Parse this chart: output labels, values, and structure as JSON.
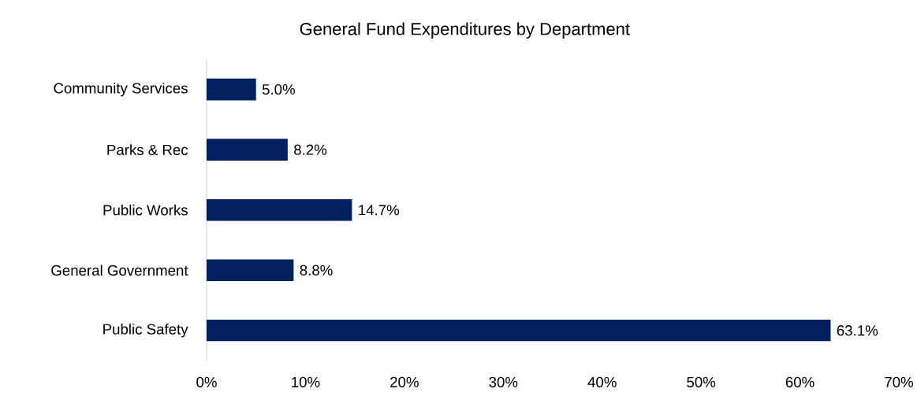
{
  "chart_data": {
    "type": "bar",
    "orientation": "horizontal",
    "title": "General Fund Expenditures by Department",
    "categories": [
      "Community Services",
      "Parks & Rec",
      "Public Works",
      "General Government",
      "Public Safety"
    ],
    "values": [
      5.0,
      8.2,
      14.7,
      8.8,
      63.1
    ],
    "value_labels": [
      "5.0%",
      "8.2%",
      "14.7%",
      "8.8%",
      "63.1%"
    ],
    "color": "#002060",
    "xlim": [
      0,
      70
    ],
    "xticks": [
      {
        "value": 0,
        "label": "0%"
      },
      {
        "value": 10,
        "label": "10%"
      },
      {
        "value": 20,
        "label": "20%"
      },
      {
        "value": 30,
        "label": "30%"
      },
      {
        "value": 40,
        "label": "40%"
      },
      {
        "value": 50,
        "label": "50%"
      },
      {
        "value": 60,
        "label": "60%"
      },
      {
        "value": 70,
        "label": "70%"
      }
    ]
  }
}
